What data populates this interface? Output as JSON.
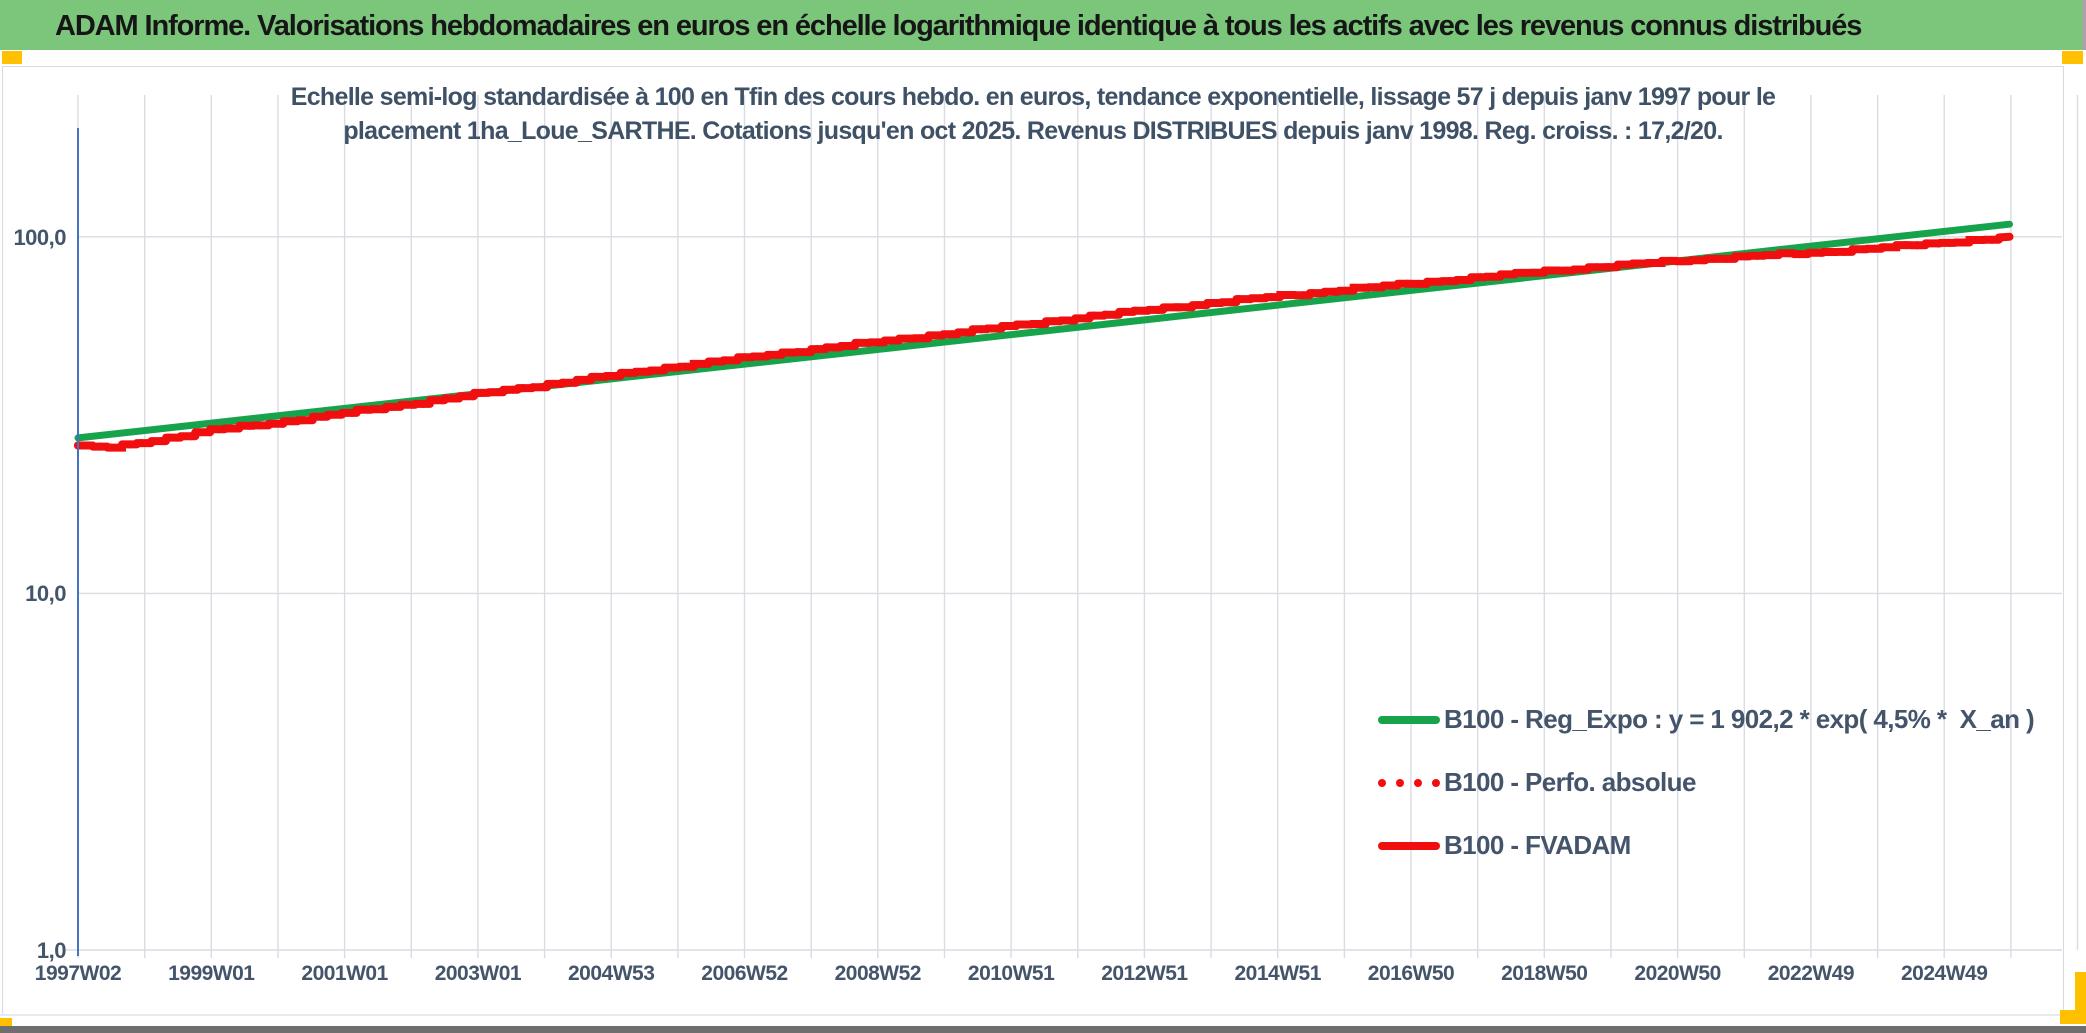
{
  "header": {
    "title": "ADAM Informe. Valorisations hebdomadaires en euros en échelle logarithmique identique à tous les actifs avec les revenus connus distribués",
    "bar_color": "#7cc67c",
    "accent_color": "#ffc000"
  },
  "chart_data": {
    "type": "line",
    "scale": "semi-log (y logarithmic)",
    "title_line1": "Echelle semi-log standardisée à 100 en Tfin des cours hebdo. en euros, tendance exponentielle, lissage 57 j depuis janv 1997 pour le",
    "title_line2": "placement 1ha_Loue_SARTHE. Cotations jusqu'en oct 2025. Revenus DISTRIBUES depuis janv 1998. Reg. croiss. : 17,2/20.",
    "ylim": [
      1,
      200
    ],
    "y_tick_labels": [
      "100,0",
      "10,0",
      "1,0"
    ],
    "y_tick_values": [
      100,
      10,
      1
    ],
    "x_tick_labels": [
      "1997W02",
      "1999W01",
      "2001W01",
      "2003W01",
      "2004W53",
      "2006W52",
      "2008W52",
      "2010W51",
      "2012W51",
      "2014W51",
      "2016W50",
      "2018W50",
      "2020W50",
      "2022W49",
      "2024W49"
    ],
    "x_range_years": [
      1997.02,
      2027.0
    ],
    "grid": "vertical yearly lines + horizontal decade lines",
    "legend_position": "inside lower right",
    "legend": [
      {
        "label": "B100 - Reg_Expo : y = 1 902,2 * exp( 4,5% *  X_an )",
        "color": "#17a34c",
        "style": "solid"
      },
      {
        "label": "B100 - Perfo. absolue",
        "color": "#f10e0e",
        "style": "dotted"
      },
      {
        "label": "B100 - FVADAM",
        "color": "#f10e0e",
        "style": "solid"
      }
    ],
    "series": [
      {
        "name": "B100 - Reg_Expo",
        "color": "#17a34c",
        "shape": "straight line on log scale",
        "points_year_value": [
          [
            1997.02,
            27.3
          ],
          [
            2026.0,
            108.5
          ]
        ]
      },
      {
        "name": "B100 - Perfo. absolue",
        "color": "#f10e0e",
        "note": "dotted series, coincides with B100 - FVADAM (hidden beneath it on the chart)"
      },
      {
        "name": "B100 - FVADAM",
        "color": "#f10e0e",
        "shape": "weekly stepped line",
        "anchors_year_value": [
          [
            1997.02,
            25.9
          ],
          [
            1997.35,
            25.5
          ],
          [
            1997.8,
            26.3
          ],
          [
            1998.5,
            27.6
          ],
          [
            1999,
            28.7
          ],
          [
            2000,
            30.2
          ],
          [
            2001,
            32.1
          ],
          [
            2002,
            34.1
          ],
          [
            2003,
            36.3
          ],
          [
            2004,
            38.5
          ],
          [
            2005,
            40.9
          ],
          [
            2006,
            43.4
          ],
          [
            2007,
            45.8
          ],
          [
            2008,
            48.4
          ],
          [
            2009,
            50.8
          ],
          [
            2010,
            53.5
          ],
          [
            2011,
            56.3
          ],
          [
            2012,
            59.3
          ],
          [
            2013,
            62.3
          ],
          [
            2014,
            65.3
          ],
          [
            2015,
            68.2
          ],
          [
            2016,
            71.1
          ],
          [
            2017,
            74.0
          ],
          [
            2018,
            77.0
          ],
          [
            2019,
            80.1
          ],
          [
            2020,
            82.9
          ],
          [
            2021,
            85.7
          ],
          [
            2022,
            88.1
          ],
          [
            2023,
            90.2
          ],
          [
            2024,
            93.1
          ],
          [
            2025,
            96.4
          ],
          [
            2026.0,
            100.0
          ]
        ]
      }
    ]
  }
}
